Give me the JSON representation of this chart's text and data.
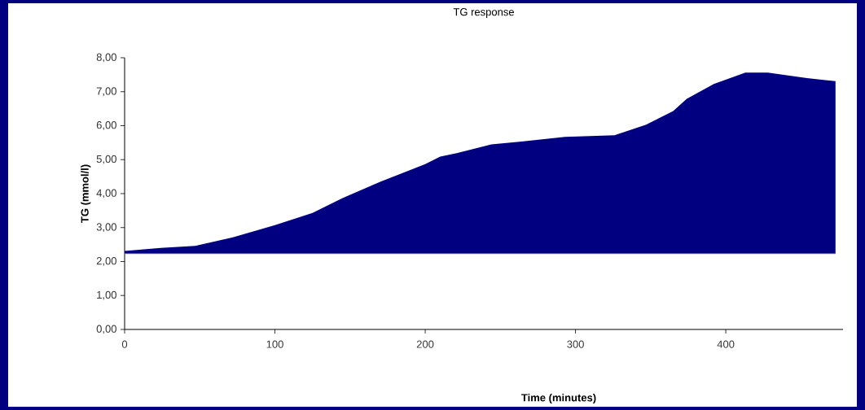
{
  "chart_data": {
    "type": "area",
    "title": "TG response",
    "xlabel": "Time (minutes)",
    "ylabel": "TG (mmol/l)",
    "xlim": [
      0,
      478
    ],
    "xticks": [
      0,
      100,
      200,
      300,
      400
    ],
    "ylim": [
      0,
      8
    ],
    "yticks": [
      {
        "value": 0,
        "label": "0,00"
      },
      {
        "value": 1,
        "label": "1,00"
      },
      {
        "value": 2,
        "label": "2,00"
      },
      {
        "value": 3,
        "label": "3,00"
      },
      {
        "value": 4,
        "label": "4,00"
      },
      {
        "value": 5,
        "label": "5,00"
      },
      {
        "value": 6,
        "label": "6,00"
      },
      {
        "value": 7,
        "label": "7,00"
      },
      {
        "value": 8,
        "label": "8,00"
      }
    ],
    "grid": false,
    "ref_lines": [
      {
        "axis": "y",
        "value": 2.23,
        "color": "#9696d2"
      }
    ],
    "series": [
      {
        "color": "#000080",
        "x": [
          0,
          24,
          47,
          72,
          100,
          125,
          145,
          170,
          200,
          210,
          221,
          244,
          264,
          293,
          326,
          347,
          365,
          374,
          392,
          413,
          428,
          454,
          473
        ],
        "values": [
          2.31,
          2.4,
          2.46,
          2.71,
          3.07,
          3.43,
          3.87,
          4.35,
          4.87,
          5.09,
          5.19,
          5.45,
          5.53,
          5.67,
          5.72,
          6.03,
          6.43,
          6.79,
          7.23,
          7.56,
          7.56,
          7.4,
          7.31
        ]
      }
    ]
  }
}
